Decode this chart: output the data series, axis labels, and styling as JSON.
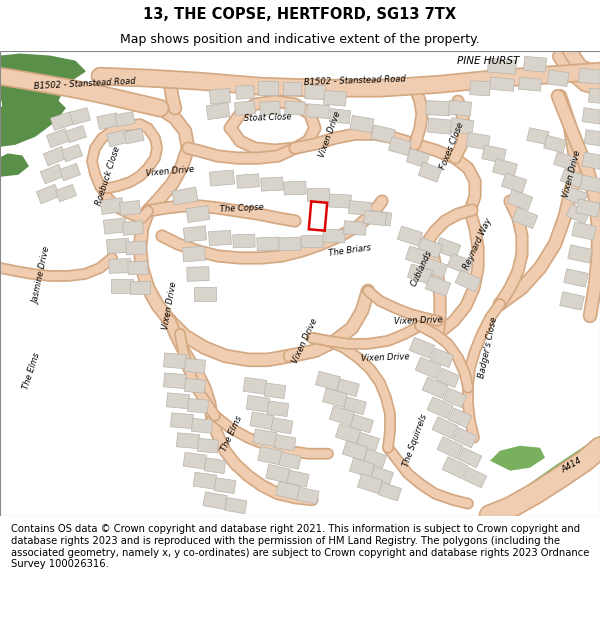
{
  "title_line1": "13, THE COPSE, HERTFORD, SG13 7TX",
  "title_line2": "Map shows position and indicative extent of the property.",
  "footer_text": "Contains OS data © Crown copyright and database right 2021. This information is subject to Crown copyright and database rights 2023 and is reproduced with the permission of HM Land Registry. The polygons (including the associated geometry, namely x, y co-ordinates) are subject to Crown copyright and database rights 2023 Ordnance Survey 100026316.",
  "map_bg": "#f7f4f0",
  "road_fill": "#f0cdb0",
  "road_outline": "#d4a882",
  "building_fill": "#d8d4cc",
  "building_outline": "#b8b4ac",
  "green_dark": "#5a8f4a",
  "green_light": "#8ab878",
  "green_a414": "#78b060",
  "plot_color": "#dd0000",
  "header_bg": "#ffffff",
  "footer_bg": "#ffffff",
  "title_fontsize": 10.5,
  "subtitle_fontsize": 9,
  "footer_fontsize": 7.2,
  "label_fontsize": 6.0,
  "pine_hurst_fontsize": 7.5
}
